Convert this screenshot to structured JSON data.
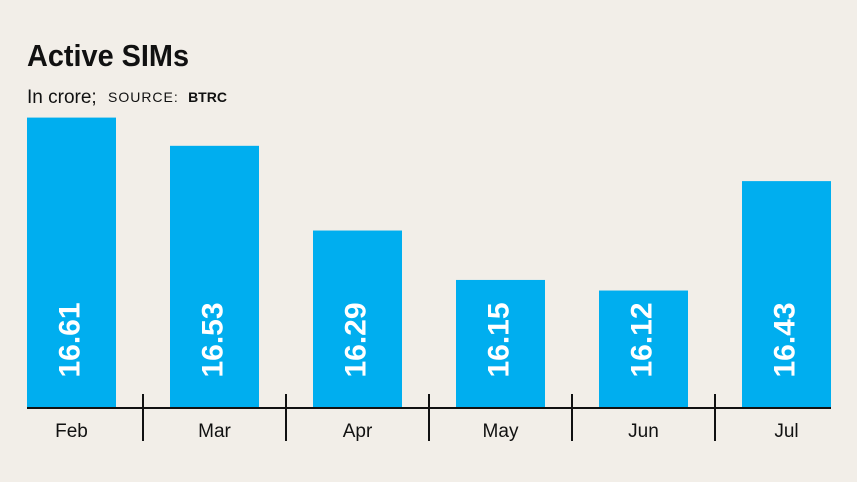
{
  "chart_data": {
    "type": "bar",
    "title": "Active SIMs",
    "subtitle": "In crore;",
    "source_label": "SOURCE:",
    "source": "BTRC",
    "categories": [
      "Feb",
      "Mar",
      "Apr",
      "May",
      "Jun",
      "Jul"
    ],
    "values": [
      16.61,
      16.53,
      16.29,
      16.15,
      16.12,
      16.43
    ],
    "color": "#00aeef",
    "ylim": [
      15.79,
      16.64
    ]
  }
}
